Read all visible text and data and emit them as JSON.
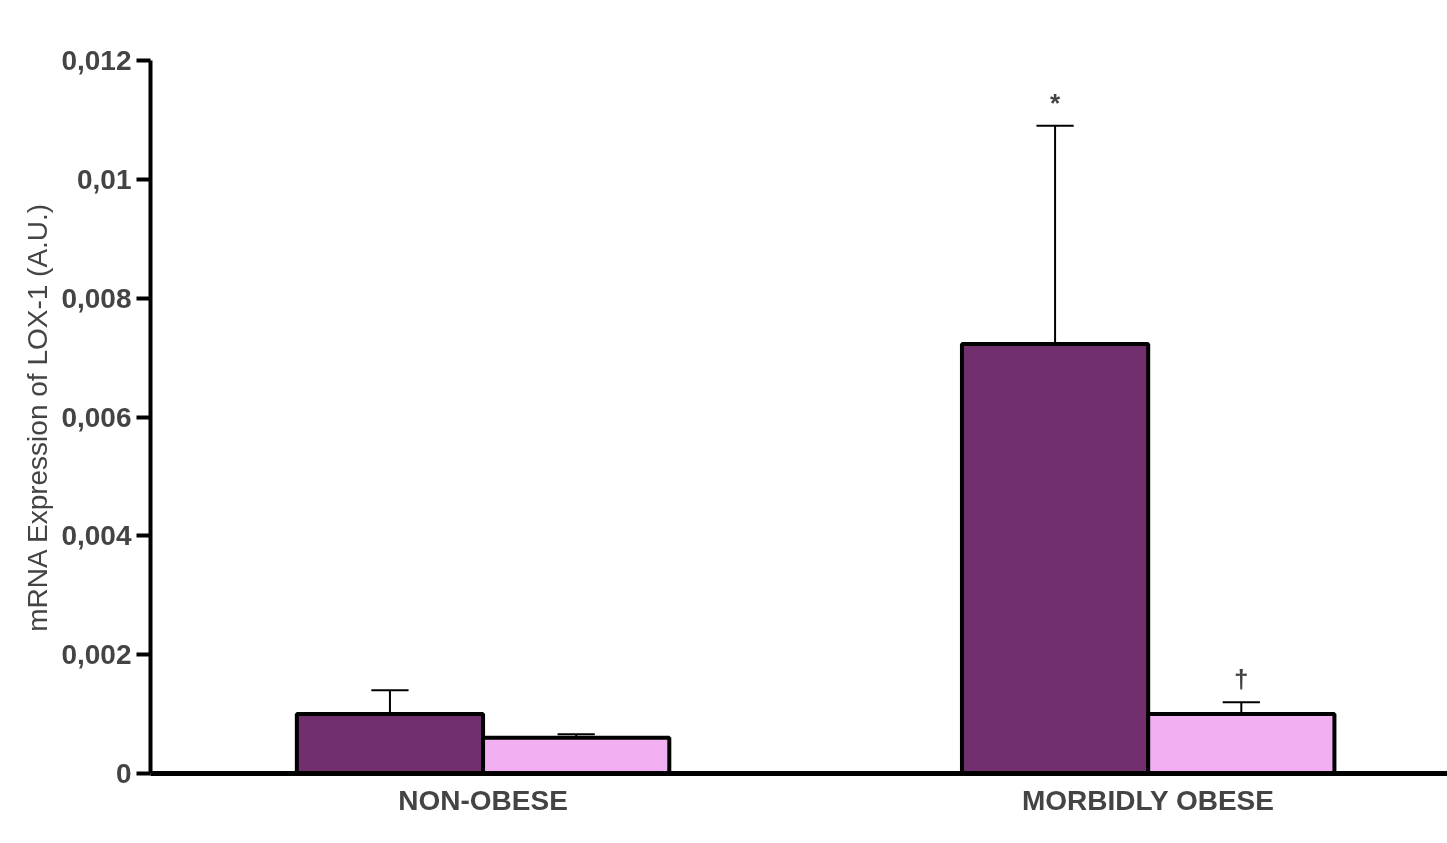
{
  "chart_data": {
    "type": "bar",
    "ylabel": "mRNA Expression of LOX-1 (A.U.)",
    "categories": [
      "NON-OBESE",
      "MORBIDLY OBESE"
    ],
    "series": [
      {
        "color": "#722f6e",
        "values": [
          0.001,
          0.00723
        ],
        "errors": [
          [
            0.001,
            0.0014
          ],
          [
            0.00723,
            0.0109
          ]
        ]
      },
      {
        "color": "#f2b0f2",
        "values": [
          0.0006,
          0.001
        ],
        "errors": [
          [
            0.0006,
            0.00066
          ],
          [
            0.001,
            0.0012
          ]
        ]
      }
    ],
    "ylim": [
      0,
      0.012
    ],
    "yticks": [
      0,
      {
        "value": 0.002,
        "label": "0,002"
      },
      {
        "value": 0.004,
        "label": "0,004"
      },
      {
        "value": 0.006,
        "label": "0,006"
      },
      {
        "value": 0.008,
        "label": "0,008"
      },
      {
        "value": 0.01,
        "label": "0,01"
      },
      {
        "value": 0.012,
        "label": "0,012"
      }
    ],
    "annotations": [
      "*",
      "†"
    ],
    "grid": false
  }
}
